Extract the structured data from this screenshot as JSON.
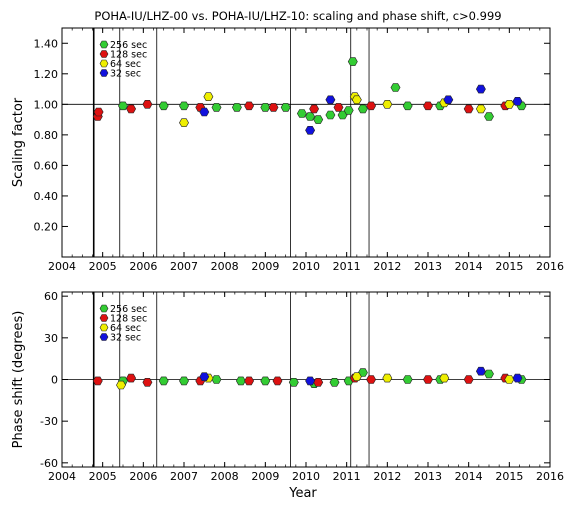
{
  "title": "POHA-IU/LHZ-00 vs. POHA-IU/LHZ-10: scaling and phase shift, c>0.999",
  "xlabel": "Year",
  "colors": {
    "256": "#33cc33",
    "128": "#dd1111",
    "64": "#eeee00",
    "32": "#1111dd"
  },
  "legend_labels": [
    "256 sec",
    "128 sec",
    "64 sec",
    "32 sec"
  ],
  "x_ticks": [
    "2004",
    "2005",
    "2006",
    "2007",
    "2008",
    "2009",
    "2010",
    "2011",
    "2012",
    "2013",
    "2014",
    "2015",
    "2016"
  ],
  "chart_data": [
    {
      "type": "scatter",
      "ylabel": "Scaling factor",
      "xlim": [
        2004,
        2016
      ],
      "ylim": [
        0,
        1.5
      ],
      "y_ticks": [
        "0.20",
        "0.40",
        "0.60",
        "0.80",
        "1.00",
        "1.20",
        "1.40"
      ],
      "reference_line": 1.0,
      "vertical_lines": [
        2004.78,
        2005.42,
        2006.33,
        2009.62,
        2011.1,
        2011.55
      ],
      "legend": "top-left",
      "series": [
        {
          "name": "256 sec",
          "points": [
            [
              2005.5,
              0.99
            ],
            [
              2006.5,
              0.99
            ],
            [
              2007.0,
              0.99
            ],
            [
              2007.8,
              0.98
            ],
            [
              2008.3,
              0.98
            ],
            [
              2009.0,
              0.98
            ],
            [
              2009.5,
              0.98
            ],
            [
              2009.9,
              0.94
            ],
            [
              2010.1,
              0.92
            ],
            [
              2010.3,
              0.9
            ],
            [
              2010.6,
              0.93
            ],
            [
              2010.9,
              0.93
            ],
            [
              2011.05,
              0.96
            ],
            [
              2011.15,
              1.28
            ],
            [
              2011.4,
              0.97
            ],
            [
              2012.2,
              1.11
            ],
            [
              2012.5,
              0.99
            ],
            [
              2013.3,
              0.99
            ],
            [
              2014.5,
              0.92
            ],
            [
              2015.3,
              0.99
            ]
          ]
        },
        {
          "name": "128 sec",
          "points": [
            [
              2004.88,
              0.92
            ],
            [
              2004.9,
              0.95
            ],
            [
              2005.7,
              0.97
            ],
            [
              2006.1,
              1.0
            ],
            [
              2007.4,
              0.98
            ],
            [
              2008.6,
              0.99
            ],
            [
              2009.2,
              0.98
            ],
            [
              2010.2,
              0.97
            ],
            [
              2010.8,
              0.98
            ],
            [
              2011.6,
              0.99
            ],
            [
              2013.0,
              0.99
            ],
            [
              2014.0,
              0.97
            ],
            [
              2014.9,
              0.99
            ]
          ]
        },
        {
          "name": "64 sec",
          "points": [
            [
              2007.0,
              0.88
            ],
            [
              2007.6,
              1.05
            ],
            [
              2011.2,
              1.05
            ],
            [
              2011.25,
              1.03
            ],
            [
              2012.0,
              1.0
            ],
            [
              2013.4,
              1.01
            ],
            [
              2014.3,
              0.97
            ],
            [
              2015.0,
              1.0
            ]
          ]
        },
        {
          "name": "32 sec",
          "points": [
            [
              2007.5,
              0.95
            ],
            [
              2010.1,
              0.83
            ],
            [
              2010.6,
              1.03
            ],
            [
              2013.5,
              1.03
            ],
            [
              2014.3,
              1.1
            ],
            [
              2015.2,
              1.02
            ]
          ]
        }
      ]
    },
    {
      "type": "scatter",
      "ylabel": "Phase shift (degrees)",
      "xlim": [
        2004,
        2016
      ],
      "ylim": [
        -63,
        63
      ],
      "y_ticks": [
        "-60",
        "-30",
        "0",
        "30",
        "60"
      ],
      "reference_line": 0,
      "vertical_lines": [
        2004.78,
        2005.42,
        2006.33,
        2009.62,
        2011.1,
        2011.55
      ],
      "legend": "top-left",
      "series": [
        {
          "name": "256 sec",
          "points": [
            [
              2005.5,
              -1
            ],
            [
              2006.5,
              -1
            ],
            [
              2007.0,
              -1
            ],
            [
              2007.8,
              0
            ],
            [
              2008.4,
              -1
            ],
            [
              2009.0,
              -1
            ],
            [
              2009.7,
              -2
            ],
            [
              2010.2,
              -3
            ],
            [
              2010.7,
              -2
            ],
            [
              2011.05,
              -1
            ],
            [
              2011.4,
              5
            ],
            [
              2012.5,
              0
            ],
            [
              2013.3,
              0
            ],
            [
              2014.5,
              4
            ],
            [
              2015.3,
              0
            ]
          ]
        },
        {
          "name": "128 sec",
          "points": [
            [
              2004.88,
              -1
            ],
            [
              2005.7,
              1
            ],
            [
              2006.1,
              -2
            ],
            [
              2007.4,
              -1
            ],
            [
              2008.6,
              -1
            ],
            [
              2009.3,
              -1
            ],
            [
              2010.3,
              -2
            ],
            [
              2011.2,
              1
            ],
            [
              2011.6,
              0
            ],
            [
              2013.0,
              0
            ],
            [
              2014.0,
              0
            ],
            [
              2014.9,
              1
            ]
          ]
        },
        {
          "name": "64 sec",
          "points": [
            [
              2005.45,
              -4
            ],
            [
              2007.6,
              1
            ],
            [
              2011.25,
              2
            ],
            [
              2012.0,
              1
            ],
            [
              2013.4,
              1
            ],
            [
              2015.0,
              0
            ]
          ]
        },
        {
          "name": "32 sec",
          "points": [
            [
              2007.5,
              2
            ],
            [
              2010.1,
              -1
            ],
            [
              2014.3,
              6
            ],
            [
              2015.2,
              1
            ]
          ]
        }
      ]
    }
  ]
}
